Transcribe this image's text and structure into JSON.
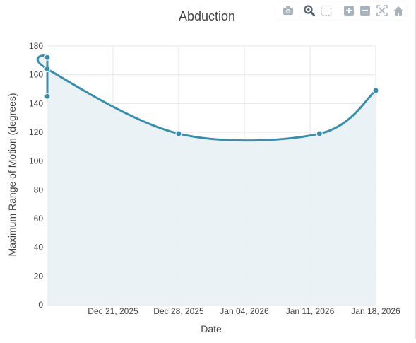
{
  "chart_data": {
    "type": "area",
    "title": "Abduction",
    "xlabel": "Date",
    "ylabel": "Maximum Range of Motion (degrees)",
    "x_axis_type": "date",
    "xlim": [
      "2025-12-14",
      "2026-01-18"
    ],
    "ylim": [
      0,
      180
    ],
    "x_tick_labels": [
      "Dec 21, 2025",
      "Dec 28, 2025",
      "Jan 04, 2026",
      "Jan 11, 2026",
      "Jan 18, 2026"
    ],
    "x_tick_dates": [
      "2025-12-21",
      "2025-12-28",
      "2026-01-04",
      "2026-01-11",
      "2026-01-18"
    ],
    "y_ticks": [
      0,
      20,
      40,
      60,
      80,
      100,
      120,
      140,
      160,
      180
    ],
    "grid": true,
    "line_shape": "spline",
    "fill": "tozeroy",
    "colors": {
      "line": "#3a8dad",
      "fill": "#e9f1f5",
      "grid": "#e6e6e6",
      "text": "#444444",
      "icon": "#a9b3bd",
      "icon_active": "#506273"
    },
    "series": [
      {
        "x": [
          "2025-12-14",
          "2025-12-14",
          "2025-12-14",
          "2025-12-28",
          "2026-01-12",
          "2026-01-18"
        ],
        "y": [
          145,
          172,
          164,
          119,
          119,
          149
        ]
      }
    ]
  },
  "modebar": {
    "icons": [
      "camera-icon",
      "zoom-icon",
      "box-select-icon",
      "zoom-in-icon",
      "zoom-out-icon",
      "autoscale-icon",
      "home-icon"
    ]
  }
}
